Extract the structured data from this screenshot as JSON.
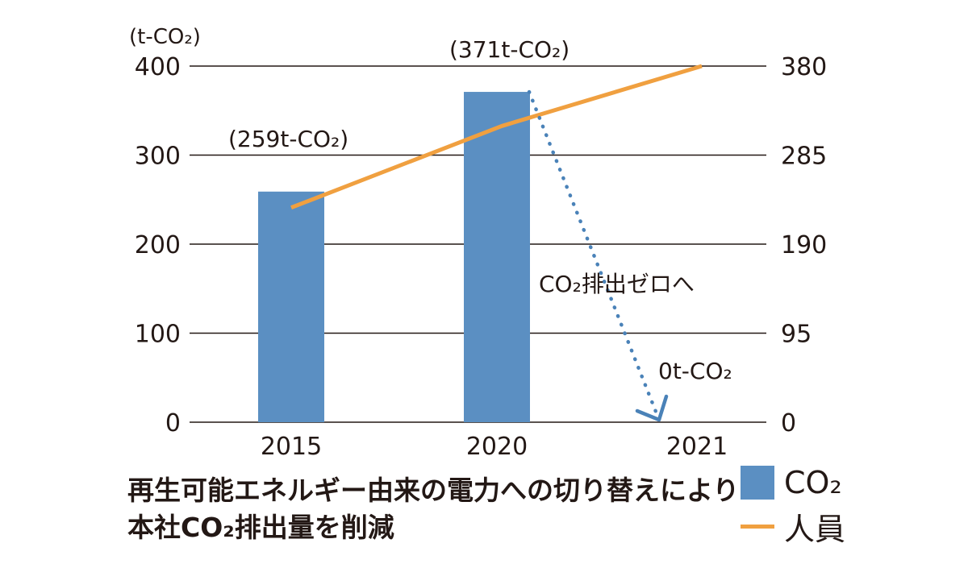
{
  "chart_data": {
    "type": "bar+line",
    "categories": [
      "2015",
      "2020",
      "2021"
    ],
    "y_left": {
      "label": "(t-CO₂)",
      "ticks": [
        "0",
        "100",
        "200",
        "300",
        "400"
      ],
      "range": [
        0,
        400
      ]
    },
    "y_right": {
      "ticks": [
        "0",
        "95",
        "190",
        "285",
        "380"
      ],
      "range": [
        0,
        380
      ]
    },
    "series": [
      {
        "name": "CO₂",
        "kind": "bar",
        "values": [
          259,
          371,
          0
        ],
        "color": "#5b8fc2"
      },
      {
        "name": "人員",
        "kind": "line",
        "axis": "right",
        "values": [
          229,
          316,
          380
        ],
        "color": "#f0a040"
      }
    ],
    "annotations": {
      "bar_2015": "(259t-CO₂)",
      "bar_2020": "(371t-CO₂)",
      "arrow_label": "CO₂排出ゼロへ",
      "target_label": "0t-CO₂"
    },
    "arrow_color": "#4a82b8",
    "grid": true
  },
  "caption": {
    "line1": "再生可能エネルギー由来の電力への切り替えにより",
    "line2": "本社CO₂排出量を削減"
  }
}
